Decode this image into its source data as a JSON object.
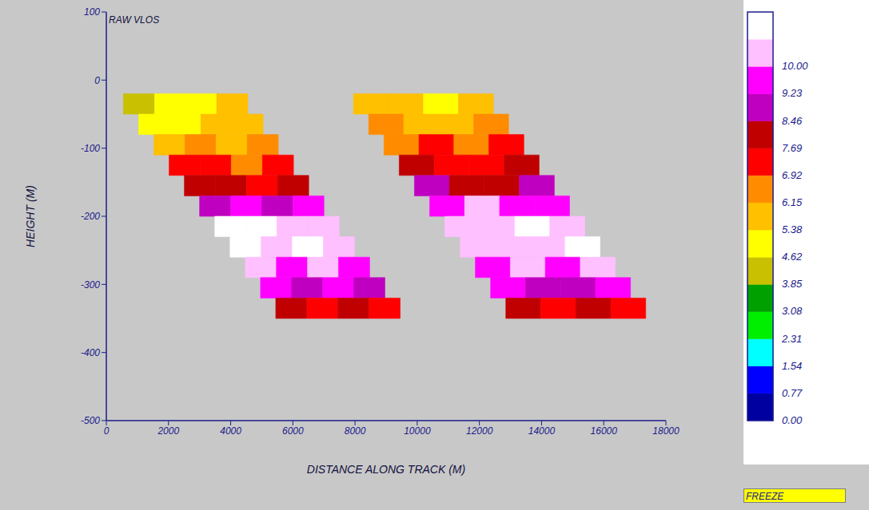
{
  "chart_data": {
    "type": "heatmap",
    "title": "RAW VLOS",
    "x_label": "DISTANCE ALONG TRACK (M)",
    "y_label": "HEIGHT (M)",
    "xlim": [
      0,
      18000
    ],
    "xticks": [
      0,
      2000,
      4000,
      6000,
      8000,
      10000,
      12000,
      14000,
      16000,
      18000
    ],
    "ylim": [
      -500,
      100
    ],
    "yticks": [
      -500,
      -400,
      -300,
      -200,
      -100,
      0,
      100
    ],
    "swaths": [
      {
        "rows": [
          {
            "y": [
              -20,
              -50
            ],
            "x": [
              550,
              4550
            ],
            "values": [
              4.4,
              5.0,
              5.0,
              5.8
            ]
          },
          {
            "y": [
              -50,
              -80
            ],
            "x": [
              1040,
              5040
            ],
            "values": [
              5.0,
              5.0,
              5.8,
              5.8
            ]
          },
          {
            "y": [
              -80,
              -110
            ],
            "x": [
              1530,
              5530
            ],
            "values": [
              5.8,
              6.5,
              5.8,
              6.5
            ]
          },
          {
            "y": [
              -110,
              -140
            ],
            "x": [
              2020,
              6020
            ],
            "values": [
              7.3,
              7.3,
              6.5,
              7.3
            ]
          },
          {
            "y": [
              -140,
              -170
            ],
            "x": [
              2510,
              6510
            ],
            "values": [
              8.0,
              8.0,
              7.3,
              8.0
            ]
          },
          {
            "y": [
              -170,
              -200
            ],
            "x": [
              3000,
              7000
            ],
            "values": [
              8.8,
              9.5,
              8.8,
              9.5
            ]
          },
          {
            "y": [
              -200,
              -230
            ],
            "x": [
              3490,
              7490
            ],
            "values": [
              11.0,
              11.0,
              10.3,
              10.3
            ]
          },
          {
            "y": [
              -230,
              -260
            ],
            "x": [
              3980,
              7980
            ],
            "values": [
              11.0,
              10.3,
              11.0,
              10.3
            ]
          },
          {
            "y": [
              -260,
              -290
            ],
            "x": [
              4470,
              8470
            ],
            "values": [
              10.3,
              9.5,
              10.3,
              9.5
            ]
          },
          {
            "y": [
              -290,
              -320
            ],
            "x": [
              4960,
              8960
            ],
            "values": [
              9.5,
              8.8,
              9.5,
              8.8
            ]
          },
          {
            "y": [
              -320,
              -350
            ],
            "x": [
              5450,
              9450
            ],
            "values": [
              8.0,
              7.3,
              8.0,
              7.3
            ]
          }
        ]
      },
      {
        "rows": [
          {
            "y": [
              -20,
              -50
            ],
            "x": [
              7950,
              12450
            ],
            "values": [
              5.8,
              5.8,
              5.0,
              5.8
            ]
          },
          {
            "y": [
              -50,
              -80
            ],
            "x": [
              8440,
              12940
            ],
            "values": [
              6.5,
              5.8,
              5.8,
              6.5
            ]
          },
          {
            "y": [
              -80,
              -110
            ],
            "x": [
              8930,
              13430
            ],
            "values": [
              6.5,
              7.3,
              6.5,
              7.3
            ]
          },
          {
            "y": [
              -110,
              -140
            ],
            "x": [
              9420,
              13920
            ],
            "values": [
              8.0,
              7.3,
              7.3,
              8.0
            ]
          },
          {
            "y": [
              -140,
              -170
            ],
            "x": [
              9910,
              14410
            ],
            "values": [
              8.8,
              8.0,
              8.0,
              8.8
            ]
          },
          {
            "y": [
              -170,
              -200
            ],
            "x": [
              10400,
              14900
            ],
            "values": [
              9.5,
              10.3,
              9.5,
              9.5
            ]
          },
          {
            "y": [
              -200,
              -230
            ],
            "x": [
              10890,
              15390
            ],
            "values": [
              10.3,
              10.3,
              11.0,
              10.3
            ]
          },
          {
            "y": [
              -230,
              -260
            ],
            "x": [
              11380,
              15880
            ],
            "values": [
              10.3,
              10.3,
              10.3,
              11.0
            ]
          },
          {
            "y": [
              -260,
              -290
            ],
            "x": [
              11870,
              16370
            ],
            "values": [
              9.5,
              10.3,
              9.5,
              10.3
            ]
          },
          {
            "y": [
              -290,
              -320
            ],
            "x": [
              12360,
              16860
            ],
            "values": [
              9.5,
              8.8,
              8.8,
              9.5
            ]
          },
          {
            "y": [
              -320,
              -350
            ],
            "x": [
              12850,
              17350
            ],
            "values": [
              8.0,
              7.3,
              8.0,
              7.3
            ]
          }
        ]
      }
    ],
    "color_bar": {
      "range": [
        0,
        11.54
      ],
      "ticks": [
        {
          "value": 0,
          "label": "0.00"
        },
        {
          "value": 0.77,
          "label": "0.77"
        },
        {
          "value": 1.54,
          "label": "1.54"
        },
        {
          "value": 2.31,
          "label": "2.31"
        },
        {
          "value": 3.08,
          "label": "3.08"
        },
        {
          "value": 3.85,
          "label": "3.85"
        },
        {
          "value": 4.62,
          "label": "4.62"
        },
        {
          "value": 5.38,
          "label": "5.38"
        },
        {
          "value": 6.15,
          "label": "6.15"
        },
        {
          "value": 6.92,
          "label": "6.92"
        },
        {
          "value": 7.69,
          "label": "7.69"
        },
        {
          "value": 8.46,
          "label": "8.46"
        },
        {
          "value": 9.23,
          "label": "9.23"
        },
        {
          "value": 10,
          "label": "10.00"
        }
      ],
      "colors": [
        "#0000a0",
        "#0000ff",
        "#00ffff",
        "#00ee00",
        "#00a000",
        "#c8c000",
        "#ffff00",
        "#ffc000",
        "#ff8c00",
        "#ff0000",
        "#c00000",
        "#c000c0",
        "#ff00ff",
        "#ffc0ff",
        "#ffffff"
      ]
    },
    "button": "FREEZE"
  }
}
